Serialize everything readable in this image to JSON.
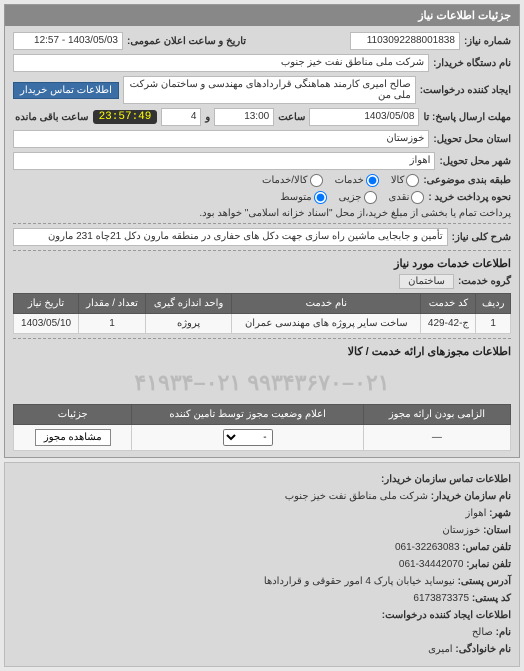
{
  "panel": {
    "title": "جزئیات اطلاعات نیاز"
  },
  "fields": {
    "req_no_label": "شماره نیاز:",
    "req_no": "1103092288001838",
    "announce_label": "تاریخ و ساعت اعلان عمومی:",
    "announce": "1403/05/03 - 12:57",
    "buyer_label": "نام دستگاه خریدار:",
    "buyer": "شرکت ملی مناطق نفت خیز جنوب",
    "requester_label": "ایجاد کننده درخواست:",
    "requester": "صالح امیری کارمند هماهنگی قراردادهای مهندسی و ساختمان شرکت ملی من",
    "contact_btn": "اطلاعات تماس خریدار",
    "deadline_label": "مهلت ارسال پاسخ: تا",
    "deadline_date": "1403/05/08",
    "time_label": "ساعت",
    "deadline_time": "13:00",
    "and_label": "و",
    "deadline_min": "4",
    "timer": "23:57:49",
    "remaining_label": "ساعت باقی مانده",
    "province_label": "استان محل تحویل:",
    "province": "خوزستان",
    "city_label": "شهر محل تحویل:",
    "city": "اهواز",
    "pkg_label": "طبقه بندی موضوعی:",
    "pkg_kala": "کالا",
    "pkg_khadamat": "خدمات",
    "pkg_both": "کالا/خدمات",
    "pay_label": "نحوه پرداخت خرید :",
    "pay_cash": "نقدی",
    "pay_partial": "جزیی",
    "pay_mid": "متوسط",
    "pay_note": "پرداخت تمام یا بخشی از مبلغ خرید،از محل \"اسناد خزانه اسلامی\" خواهد بود.",
    "desc_label": "شرح کلی نیاز:",
    "desc": "تأمین و جابجایی ماشین راه سازی جهت دکل های حفاری در منطقه مارون دکل 21چاه 231 مارون"
  },
  "services": {
    "section_title": "اطلاعات خدمات مورد نیاز",
    "group_label": "گروه خدمت:",
    "group": "ساختمان",
    "columns": [
      "ردیف",
      "کد خدمت",
      "نام خدمت",
      "واحد اندازه گیری",
      "تعداد / مقدار",
      "تاریخ نیاز"
    ],
    "rows": [
      [
        "1",
        "ج-42-429",
        "ساخت سایر پروژه های مهندسی عمران",
        "پروژه",
        "1",
        "1403/05/10"
      ]
    ]
  },
  "auth": {
    "section_title": "اطلاعات مجوزهای ارائه خدمت / کالا",
    "phone_banner": "۰۲۱–۹۹۳۴۳۶۷۰   ۰۲۱–۴۱۹۳۴",
    "columns": [
      "الزامی بودن ارائه مجوز",
      "اعلام وضعیت مجوز توسط تامین کننده",
      "جزئیات"
    ],
    "mandatory": "—",
    "select_placeholder": "-",
    "view_btn": "مشاهده مجوز"
  },
  "contact": {
    "title": "اطلاعات تماس سازمان خریدار:",
    "org_label": "نام سازمان خریدار:",
    "org": "شرکت ملی مناطق نفت خیز جنوب",
    "city_label": "شهر:",
    "city": "اهواز",
    "province_label": "استان:",
    "province": "خوزستان",
    "phone_label": "تلفن تماس:",
    "phone": "32263083-061",
    "fax_label": "تلفن نمابر:",
    "fax": "34442070-061",
    "addr_label": "آدرس پستی:",
    "addr": "نیوساید خیابان پارک 4 امور حقوقی و قراردادها",
    "post_label": "کد پستی:",
    "post": "6173873375",
    "creator_title": "اطلاعات ایجاد کننده درخواست:",
    "fname_label": "نام:",
    "fname": "صالح",
    "lname_label": "نام خانوادگی:",
    "lname": "امیری"
  }
}
